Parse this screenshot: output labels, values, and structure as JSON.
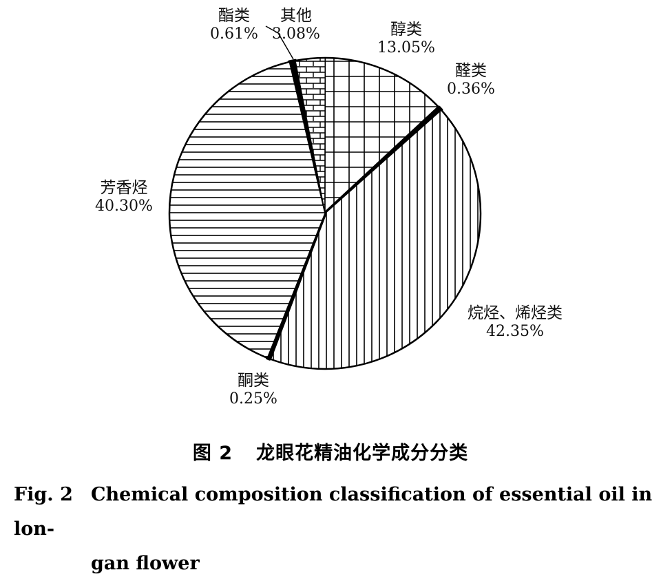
{
  "chart_data": {
    "type": "pie",
    "slices": [
      {
        "label": "酯类",
        "value": 0.61,
        "value_text": "0.61%"
      },
      {
        "label": "其他",
        "value": 3.08,
        "value_text": "3.08%"
      },
      {
        "label": "醇类",
        "value": 13.05,
        "value_text": "13.05%"
      },
      {
        "label": "醛类",
        "value": 0.36,
        "value_text": "0.36%"
      },
      {
        "label": "烷烃、烯烃类",
        "value": 42.35,
        "value_text": "42.35%"
      },
      {
        "label": "酮类",
        "value": 0.25,
        "value_text": "0.25%"
      },
      {
        "label": "芳香烃",
        "value": 40.3,
        "value_text": "40.30%"
      }
    ]
  },
  "caption": {
    "cn_number": "图 2",
    "cn_title": "龙眼花精油化学成分分类",
    "en_number": "Fig. 2",
    "en_title_line1": "Chemical composition classification of essential oil in lon-",
    "en_title_line2": "gan flower"
  }
}
